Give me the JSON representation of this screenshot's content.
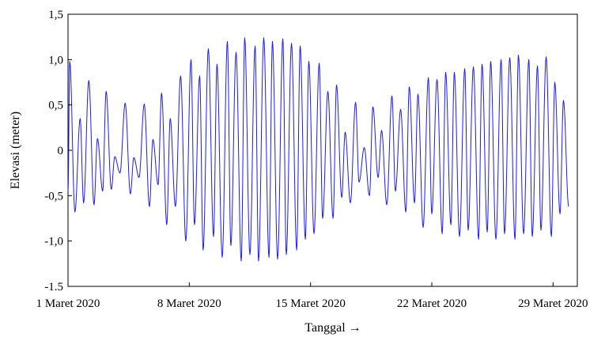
{
  "chart_data": {
    "type": "line",
    "title": "",
    "xlabel": "Tanggal →",
    "ylabel": "Elevasi (meter)",
    "x_unit": "days",
    "x_range": [
      1,
      30.4
    ],
    "ylim": [
      -1.5,
      1.5
    ],
    "y_ticks": [
      -1.5,
      -1.0,
      -0.5,
      0,
      0.5,
      1.0,
      1.5
    ],
    "y_tick_labels": [
      "-1.5",
      "-1,0",
      "-0,5",
      "0",
      "0,5",
      "1,0",
      "1,5"
    ],
    "x_ticks": [
      1,
      8,
      15,
      22,
      29
    ],
    "x_tick_labels": [
      "1 Maret 2020",
      "8 Maret 2020",
      "15 Maret 2020",
      "22 Maret 2020",
      "29 Maret 2020"
    ],
    "grid": false,
    "series": [
      {
        "color": "#1a1aff",
        "description": "tidal elevation, approx. diurnal peaks and troughs",
        "peaks": [
          {
            "x": 1.1,
            "y": 0.98
          },
          {
            "x": 1.7,
            "y": 0.35
          },
          {
            "x": 2.2,
            "y": 0.77
          },
          {
            "x": 2.7,
            "y": 0.13
          },
          {
            "x": 3.2,
            "y": 0.65
          },
          {
            "x": 3.7,
            "y": -0.07
          },
          {
            "x": 4.3,
            "y": 0.52
          },
          {
            "x": 4.8,
            "y": -0.08
          },
          {
            "x": 5.4,
            "y": 0.51
          },
          {
            "x": 5.9,
            "y": 0.12
          },
          {
            "x": 6.4,
            "y": 0.63
          },
          {
            "x": 6.9,
            "y": 0.35
          },
          {
            "x": 7.5,
            "y": 0.82
          },
          {
            "x": 8.1,
            "y": 1.0
          },
          {
            "x": 8.6,
            "y": 0.82
          },
          {
            "x": 9.1,
            "y": 1.12
          },
          {
            "x": 9.6,
            "y": 0.95
          },
          {
            "x": 10.2,
            "y": 1.2
          },
          {
            "x": 10.7,
            "y": 1.08
          },
          {
            "x": 11.2,
            "y": 1.24
          },
          {
            "x": 11.8,
            "y": 1.15
          },
          {
            "x": 12.3,
            "y": 1.24
          },
          {
            "x": 12.8,
            "y": 1.2
          },
          {
            "x": 13.4,
            "y": 1.23
          },
          {
            "x": 13.9,
            "y": 1.18
          },
          {
            "x": 14.4,
            "y": 1.15
          },
          {
            "x": 14.9,
            "y": 0.98
          },
          {
            "x": 15.5,
            "y": 0.96
          },
          {
            "x": 16.0,
            "y": 0.65
          },
          {
            "x": 16.5,
            "y": 0.72
          },
          {
            "x": 17.0,
            "y": 0.2
          },
          {
            "x": 17.6,
            "y": 0.53
          },
          {
            "x": 18.1,
            "y": 0.03
          },
          {
            "x": 18.6,
            "y": 0.48
          },
          {
            "x": 19.1,
            "y": 0.22
          },
          {
            "x": 19.7,
            "y": 0.6
          },
          {
            "x": 20.2,
            "y": 0.45
          },
          {
            "x": 20.7,
            "y": 0.7
          },
          {
            "x": 21.2,
            "y": 0.62
          },
          {
            "x": 21.8,
            "y": 0.8
          },
          {
            "x": 22.3,
            "y": 0.78
          },
          {
            "x": 22.8,
            "y": 0.86
          },
          {
            "x": 23.3,
            "y": 0.86
          },
          {
            "x": 23.9,
            "y": 0.9
          },
          {
            "x": 24.4,
            "y": 0.92
          },
          {
            "x": 24.9,
            "y": 0.95
          },
          {
            "x": 25.4,
            "y": 0.98
          },
          {
            "x": 26.0,
            "y": 1.0
          },
          {
            "x": 26.5,
            "y": 1.02
          },
          {
            "x": 27.0,
            "y": 1.05
          },
          {
            "x": 27.6,
            "y": 1.0
          },
          {
            "x": 28.1,
            "y": 0.93
          },
          {
            "x": 28.6,
            "y": 1.03
          },
          {
            "x": 29.1,
            "y": 0.75
          },
          {
            "x": 29.6,
            "y": 0.55
          }
        ],
        "troughs": [
          {
            "x": 1.0,
            "y": -0.45
          },
          {
            "x": 1.4,
            "y": -0.68
          },
          {
            "x": 1.9,
            "y": -0.58
          },
          {
            "x": 2.5,
            "y": -0.6
          },
          {
            "x": 3.0,
            "y": -0.45
          },
          {
            "x": 3.5,
            "y": -0.43
          },
          {
            "x": 4.0,
            "y": -0.25
          },
          {
            "x": 4.6,
            "y": -0.48
          },
          {
            "x": 5.1,
            "y": -0.3
          },
          {
            "x": 5.7,
            "y": -0.62
          },
          {
            "x": 6.2,
            "y": -0.38
          },
          {
            "x": 6.7,
            "y": -0.82
          },
          {
            "x": 7.2,
            "y": -0.62
          },
          {
            "x": 7.8,
            "y": -1.0
          },
          {
            "x": 8.3,
            "y": -0.82
          },
          {
            "x": 8.8,
            "y": -1.1
          },
          {
            "x": 9.4,
            "y": -0.95
          },
          {
            "x": 9.9,
            "y": -1.18
          },
          {
            "x": 10.4,
            "y": -1.05
          },
          {
            "x": 11.0,
            "y": -1.22
          },
          {
            "x": 11.5,
            "y": -1.15
          },
          {
            "x": 12.0,
            "y": -1.22
          },
          {
            "x": 12.6,
            "y": -1.18
          },
          {
            "x": 13.1,
            "y": -1.2
          },
          {
            "x": 13.6,
            "y": -1.15
          },
          {
            "x": 14.2,
            "y": -1.1
          },
          {
            "x": 14.7,
            "y": -0.98
          },
          {
            "x": 15.2,
            "y": -0.92
          },
          {
            "x": 15.7,
            "y": -0.75
          },
          {
            "x": 16.3,
            "y": -0.75
          },
          {
            "x": 16.8,
            "y": -0.52
          },
          {
            "x": 17.3,
            "y": -0.58
          },
          {
            "x": 17.8,
            "y": -0.35
          },
          {
            "x": 18.4,
            "y": -0.5
          },
          {
            "x": 18.9,
            "y": -0.3
          },
          {
            "x": 19.4,
            "y": -0.6
          },
          {
            "x": 19.9,
            "y": -0.45
          },
          {
            "x": 20.5,
            "y": -0.68
          },
          {
            "x": 21.0,
            "y": -0.58
          },
          {
            "x": 21.5,
            "y": -0.85
          },
          {
            "x": 22.0,
            "y": -0.7
          },
          {
            "x": 22.6,
            "y": -0.92
          },
          {
            "x": 23.1,
            "y": -0.82
          },
          {
            "x": 23.6,
            "y": -0.95
          },
          {
            "x": 24.1,
            "y": -0.88
          },
          {
            "x": 24.7,
            "y": -0.98
          },
          {
            "x": 25.2,
            "y": -0.9
          },
          {
            "x": 25.7,
            "y": -0.98
          },
          {
            "x": 26.2,
            "y": -0.92
          },
          {
            "x": 26.8,
            "y": -0.98
          },
          {
            "x": 27.3,
            "y": -0.92
          },
          {
            "x": 27.8,
            "y": -0.95
          },
          {
            "x": 28.3,
            "y": -0.88
          },
          {
            "x": 28.9,
            "y": -0.95
          },
          {
            "x": 29.4,
            "y": -0.7
          },
          {
            "x": 29.9,
            "y": -0.62
          }
        ]
      }
    ]
  }
}
